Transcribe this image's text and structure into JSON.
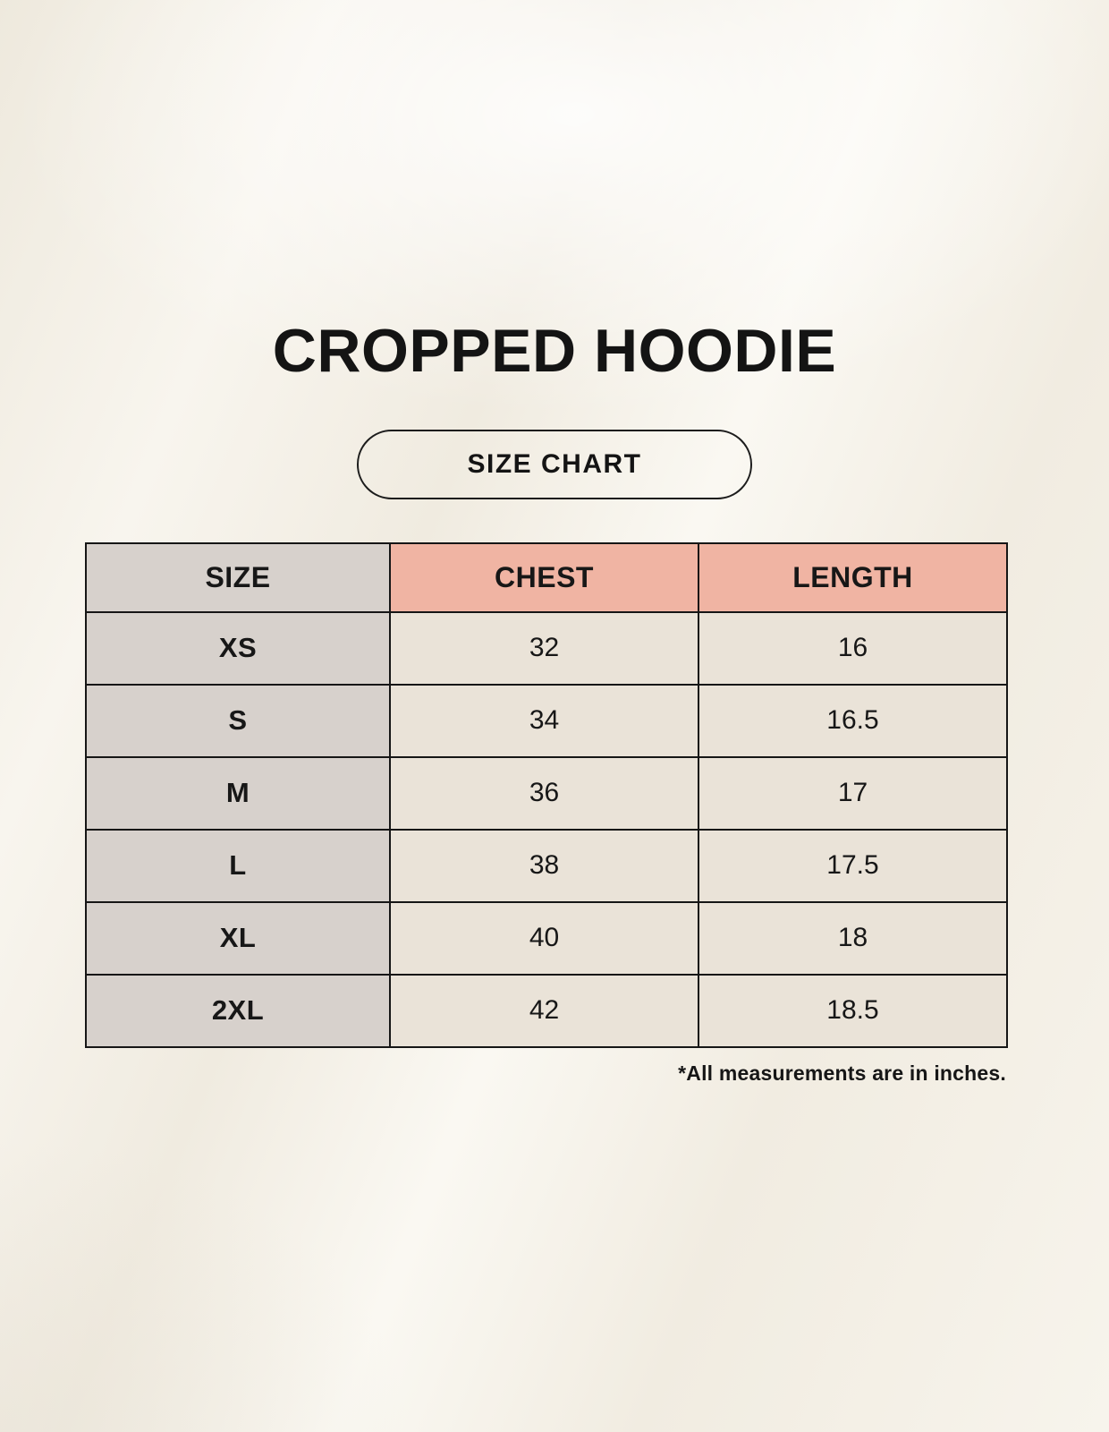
{
  "header": {
    "title": "CROPPED HOODIE",
    "button_label": "SIZE CHART"
  },
  "table": {
    "columns": [
      "SIZE",
      "CHEST",
      "LENGTH"
    ],
    "rows": [
      {
        "size": "XS",
        "chest": "32",
        "length": "16"
      },
      {
        "size": "S",
        "chest": "34",
        "length": "16.5"
      },
      {
        "size": "M",
        "chest": "36",
        "length": "17"
      },
      {
        "size": "L",
        "chest": "38",
        "length": "17.5"
      },
      {
        "size": "XL",
        "chest": "40",
        "length": "18"
      },
      {
        "size": "2XL",
        "chest": "42",
        "length": "18.5"
      }
    ]
  },
  "footnote": {
    "text": "*All measurements are in inches."
  },
  "colors": {
    "background": "#f5f1e8",
    "size_column_bg": "#d7d1cc",
    "measure_header_bg": "#f0b4a3",
    "value_cell_bg": "#eae3d8",
    "border": "#161616",
    "text": "#171717"
  },
  "chart_data": {
    "type": "table",
    "title": "CROPPED HOODIE",
    "columns": [
      "SIZE",
      "CHEST",
      "LENGTH"
    ],
    "rows": [
      [
        "XS",
        32,
        16
      ],
      [
        "S",
        34,
        16.5
      ],
      [
        "M",
        36,
        17
      ],
      [
        "L",
        38,
        17.5
      ],
      [
        "XL",
        40,
        18
      ],
      [
        "2XL",
        42,
        18.5
      ]
    ],
    "units": "inches",
    "note": "*All measurements are in inches."
  }
}
